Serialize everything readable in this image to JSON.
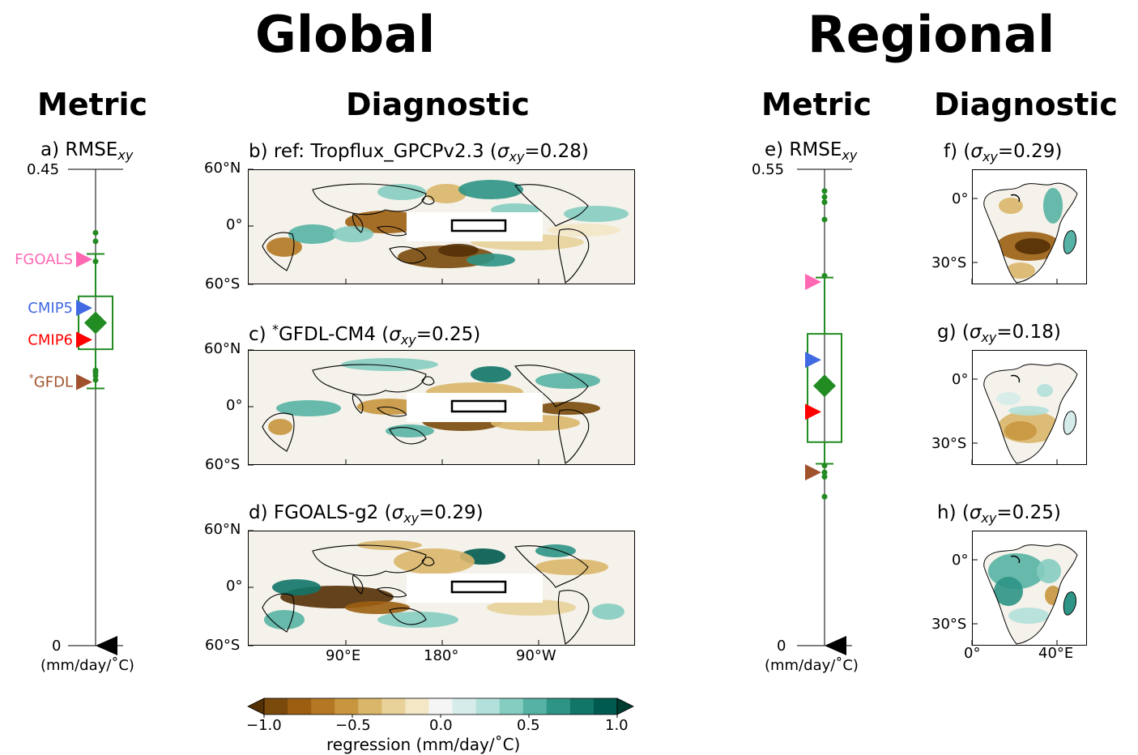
{
  "headings": {
    "global": "Global",
    "regional": "Regional",
    "metric_global": "Metric",
    "diagnostic_global": "Diagnostic",
    "metric_regional": "Metric",
    "diagnostic_regional": "Diagnostic"
  },
  "colors": {
    "green": "#228b22",
    "fgoals": "#ff69b4",
    "cmip5": "#4169e1",
    "cmip6": "#ff0000",
    "gfdl": "#a0522d",
    "reference": "#000000"
  },
  "colorbar": {
    "label": "regression (mm/day/˚C)",
    "ticks": [
      "−1.0",
      "−0.5",
      "0.0",
      "0.5",
      "1.0"
    ],
    "colors": [
      "#543005",
      "#7a4a0c",
      "#9c5f12",
      "#b47824",
      "#c8963f",
      "#dab66a",
      "#e8d29a",
      "#f3e7c6",
      "#f5f5f5",
      "#d5ecea",
      "#b3e0da",
      "#86cdc1",
      "#56b2a4",
      "#2e9485",
      "#117668",
      "#015a4f",
      "#003c30"
    ]
  },
  "chart_data": [
    {
      "id": "a",
      "type": "box",
      "title": "a) RMSE",
      "title_sub": "xy",
      "ylim": [
        0,
        0.45
      ],
      "ytick_top": "0.45",
      "ytick_bottom": "0",
      "units": "(mm/day/˚C)",
      "box": {
        "q1": 0.28,
        "median": 0.305,
        "q3": 0.33,
        "whisker_low": 0.243,
        "whisker_high": 0.37
      },
      "mean": 0.305,
      "outliers": [
        0.39,
        0.382,
        0.363,
        0.26,
        0.258,
        0.255,
        0.251
      ],
      "references": [
        {
          "name": "FGOALS",
          "value": 0.365,
          "color": "#ff69b4"
        },
        {
          "name": "CMIP5",
          "value": 0.319,
          "color": "#4169e1"
        },
        {
          "name": "CMIP6",
          "value": 0.289,
          "color": "#ff0000"
        },
        {
          "name": "GFDL",
          "prefix": "*",
          "value": 0.249,
          "color": "#a0522d"
        },
        {
          "name": "",
          "value": 0.0,
          "color": "#000000"
        }
      ]
    },
    {
      "id": "e",
      "type": "box",
      "title": "e) RMSE",
      "title_sub": "xy",
      "ylim": [
        0,
        0.55
      ],
      "ytick_top": "0.55",
      "ytick_bottom": "0",
      "units": "(mm/day/˚C)",
      "box": {
        "q1": 0.235,
        "median": 0.3,
        "q3": 0.36,
        "whisker_low": 0.21,
        "whisker_high": 0.425
      },
      "mean": 0.3,
      "outliers": [
        0.525,
        0.518,
        0.512,
        0.492,
        0.427,
        0.208,
        0.2,
        0.195,
        0.172
      ],
      "references": [
        {
          "name": "FGOALS",
          "value": 0.42,
          "color": "#ff69b4"
        },
        {
          "name": "CMIP5",
          "value": 0.33,
          "color": "#4169e1"
        },
        {
          "name": "CMIP6",
          "value": 0.27,
          "color": "#ff0000"
        },
        {
          "name": "GFDL",
          "value": 0.2,
          "color": "#a0522d"
        },
        {
          "name": "",
          "value": 0.0,
          "color": "#000000"
        }
      ]
    },
    {
      "id": "b",
      "type": "heatmap",
      "title": "b) ref: Tropflux_GPCPv2.3 (",
      "sigma": "σ",
      "sub": "xy",
      "suffix": "=0.28)",
      "yticks": [
        "60°N",
        "0°",
        "60°S"
      ],
      "xticks": []
    },
    {
      "id": "c",
      "type": "heatmap",
      "title": "c) ",
      "star": "*",
      "title2": "GFDL-CM4 (",
      "sigma": "σ",
      "sub": "xy",
      "suffix": "=0.25)",
      "yticks": [
        "60°N",
        "0°",
        "60°S"
      ],
      "xticks": []
    },
    {
      "id": "d",
      "type": "heatmap",
      "title": "d) FGOALS-g2 (",
      "sigma": "σ",
      "sub": "xy",
      "suffix": "=0.29)",
      "yticks": [
        "60°N",
        "0°",
        "60°S"
      ],
      "xticks": [
        "90°E",
        "180°",
        "90°W"
      ]
    },
    {
      "id": "f",
      "type": "heatmap",
      "title": "f)  (",
      "sigma": "σ",
      "sub": "xy",
      "suffix": "=0.29)",
      "yticks": [
        "0°",
        "30°S"
      ],
      "xticks": []
    },
    {
      "id": "g",
      "type": "heatmap",
      "title": "g)  (",
      "sigma": "σ",
      "sub": "xy",
      "suffix": "=0.18)",
      "yticks": [
        "0°",
        "30°S"
      ],
      "xticks": []
    },
    {
      "id": "h",
      "type": "heatmap",
      "title": "h)  (",
      "sigma": "σ",
      "sub": "xy",
      "suffix": "=0.25)",
      "yticks": [
        "0°",
        "30°S"
      ],
      "xticks": [
        "0°",
        "40°E"
      ]
    }
  ]
}
